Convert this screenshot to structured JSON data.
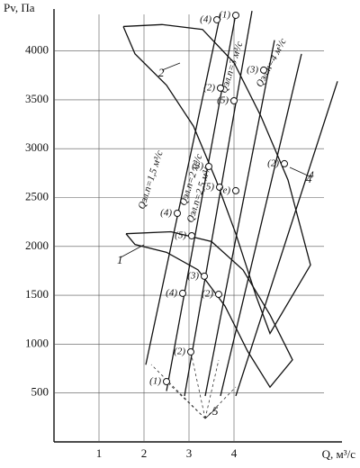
{
  "chart_data": {
    "type": "line",
    "ylabel": "Pv, Па",
    "xlabel": "Q, м³/с",
    "xlim": [
      0,
      6.4
    ],
    "ylim": [
      0,
      4420
    ],
    "xticks": [
      1,
      2,
      3,
      4
    ],
    "yticks": [
      500,
      1000,
      1500,
      2000,
      2500,
      3000,
      3500,
      4000
    ],
    "grid": true,
    "color": "#111111",
    "series": [
      {
        "name": "2",
        "x": [
          1.54,
          2.4,
          3.3,
          4.0,
          4.6,
          5.2,
          5.7,
          4.8,
          4.5,
          4.04,
          3.6,
          3.1,
          2.5,
          1.8,
          1.54
        ],
        "values": [
          4250,
          4270,
          4220,
          3880,
          3330,
          2680,
          1810,
          1110,
          1480,
          2130,
          2680,
          3230,
          3650,
          3970,
          4250
        ]
      },
      {
        "name": "1",
        "x": [
          1.6,
          2.6,
          3.5,
          4.2,
          4.8,
          5.3,
          4.8,
          4.3,
          3.8,
          3.2,
          2.5,
          1.8,
          1.6
        ],
        "values": [
          2130,
          2150,
          2050,
          1760,
          1300,
          840,
          560,
          930,
          1390,
          1760,
          1940,
          2020,
          2130
        ]
      },
      {
        "name": "Qэл.п=1,5 м³/с",
        "x": [
          2.04,
          3.7
        ],
        "values": [
          790,
          4380
        ]
      },
      {
        "name": "Qэл.п=2 м³/с",
        "x": [
          2.5,
          4.04
        ],
        "values": [
          520,
          4380
        ]
      },
      {
        "name": "Qэл.п=2,5 м³/с",
        "x": [
          2.9,
          4.4
        ],
        "values": [
          470,
          4410
        ]
      },
      {
        "name": "Qэл.п=3 м³/с",
        "x": [
          3.36,
          4.9
        ],
        "values": [
          470,
          4110
        ]
      },
      {
        "name": "Qэл.п=4 м³/с",
        "x": [
          3.7,
          5.5
        ],
        "values": [
          470,
          3970
        ]
      },
      {
        "name": "4",
        "x": [
          4.04,
          6.3
        ],
        "values": [
          470,
          3690
        ]
      }
    ],
    "points": {
      "x": [
        2.5,
        3.04,
        3.34,
        2.86,
        3.06,
        2.74,
        3.66,
        3.68,
        4.04,
        3.44,
        4.0,
        3.7,
        3.62,
        4.04,
        5.12,
        4.66
      ],
      "values": [
        617,
        921,
        1695,
        1520,
        2109,
        2339,
        1510,
        2606,
        2570,
        2818,
        3490,
        3620,
        4319,
        4365,
        2846,
        3804
      ],
      "labels": [
        "(1)",
        "(2)",
        "(3)",
        "(4)",
        "(5)",
        "(4)",
        "(2)",
        "(5)",
        "(е)",
        "(3)",
        "(5)",
        "(2)",
        "(4)",
        "(1)",
        "(2)",
        "(3)"
      ]
    },
    "annotations": [
      "1",
      "2",
      "4",
      "5"
    ]
  }
}
